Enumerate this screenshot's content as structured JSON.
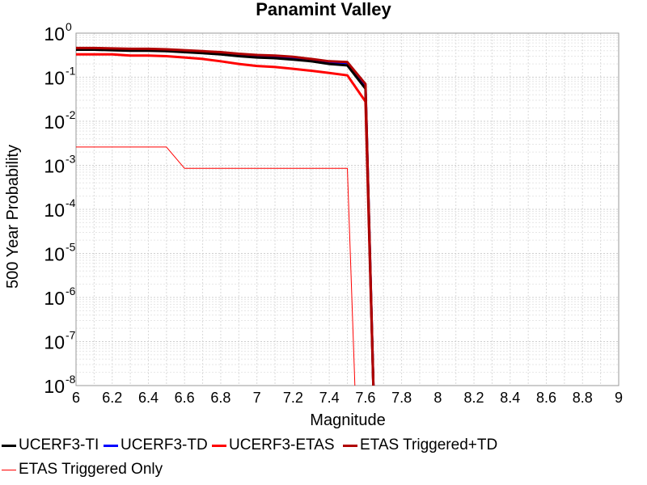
{
  "chart_data": {
    "type": "line",
    "title": "Panamint Valley",
    "xlabel": "Magnitude",
    "ylabel": "500 Year Probability",
    "xlim": [
      6,
      9
    ],
    "ylim": [
      1e-08,
      1
    ],
    "yscale": "log",
    "grid": true,
    "x_ticks": [
      "6",
      "6.2",
      "6.4",
      "6.6",
      "6.8",
      "7",
      "7.2",
      "7.4",
      "7.6",
      "7.8",
      "8",
      "8.2",
      "8.4",
      "8.6",
      "8.8",
      "9"
    ],
    "y_ticks": [
      {
        "base": "10",
        "exp": "0"
      },
      {
        "base": "10",
        "exp": "-1"
      },
      {
        "base": "10",
        "exp": "-2"
      },
      {
        "base": "10",
        "exp": "-3"
      },
      {
        "base": "10",
        "exp": "-4"
      },
      {
        "base": "10",
        "exp": "-5"
      },
      {
        "base": "10",
        "exp": "-6"
      },
      {
        "base": "10",
        "exp": "-7"
      },
      {
        "base": "10",
        "exp": "-8"
      }
    ],
    "legend_position": "bottom",
    "series": [
      {
        "name": "UCERF3-TI",
        "color": "#000000",
        "width": 3,
        "points": [
          [
            6.0,
            0.42
          ],
          [
            6.1,
            0.42
          ],
          [
            6.2,
            0.41
          ],
          [
            6.3,
            0.4
          ],
          [
            6.4,
            0.4
          ],
          [
            6.5,
            0.39
          ],
          [
            6.6,
            0.37
          ],
          [
            6.7,
            0.35
          ],
          [
            6.8,
            0.33
          ],
          [
            6.9,
            0.3
          ],
          [
            7.0,
            0.28
          ],
          [
            7.1,
            0.27
          ],
          [
            7.2,
            0.25
          ],
          [
            7.3,
            0.23
          ],
          [
            7.4,
            0.2
          ],
          [
            7.5,
            0.185
          ],
          [
            7.6,
            0.055
          ],
          [
            7.65,
            1e-09
          ]
        ]
      },
      {
        "name": "UCERF3-TD",
        "color": "#0000ff",
        "width": 3,
        "points": [
          [
            6.0,
            0.45
          ],
          [
            6.1,
            0.45
          ],
          [
            6.2,
            0.44
          ],
          [
            6.3,
            0.43
          ],
          [
            6.4,
            0.43
          ],
          [
            6.5,
            0.42
          ],
          [
            6.6,
            0.4
          ],
          [
            6.7,
            0.38
          ],
          [
            6.8,
            0.36
          ],
          [
            6.9,
            0.33
          ],
          [
            7.0,
            0.31
          ],
          [
            7.1,
            0.3
          ],
          [
            7.2,
            0.28
          ],
          [
            7.3,
            0.25
          ],
          [
            7.4,
            0.22
          ],
          [
            7.5,
            0.21
          ],
          [
            7.6,
            0.065
          ],
          [
            7.65,
            1e-09
          ]
        ]
      },
      {
        "name": "UCERF3-ETAS",
        "color": "#ff0000",
        "width": 3,
        "points": [
          [
            6.0,
            0.33
          ],
          [
            6.1,
            0.33
          ],
          [
            6.2,
            0.33
          ],
          [
            6.3,
            0.31
          ],
          [
            6.4,
            0.31
          ],
          [
            6.5,
            0.3
          ],
          [
            6.6,
            0.28
          ],
          [
            6.7,
            0.26
          ],
          [
            6.8,
            0.23
          ],
          [
            6.9,
            0.2
          ],
          [
            7.0,
            0.18
          ],
          [
            7.1,
            0.17
          ],
          [
            7.2,
            0.155
          ],
          [
            7.3,
            0.14
          ],
          [
            7.4,
            0.125
          ],
          [
            7.5,
            0.11
          ],
          [
            7.6,
            0.028
          ],
          [
            7.65,
            1e-09
          ]
        ]
      },
      {
        "name": "ETAS Triggered+TD",
        "color": "#b00000",
        "width": 3,
        "points": [
          [
            6.0,
            0.46
          ],
          [
            6.1,
            0.46
          ],
          [
            6.2,
            0.45
          ],
          [
            6.3,
            0.44
          ],
          [
            6.4,
            0.44
          ],
          [
            6.5,
            0.43
          ],
          [
            6.6,
            0.41
          ],
          [
            6.7,
            0.39
          ],
          [
            6.8,
            0.37
          ],
          [
            6.9,
            0.34
          ],
          [
            7.0,
            0.32
          ],
          [
            7.1,
            0.31
          ],
          [
            7.2,
            0.29
          ],
          [
            7.3,
            0.26
          ],
          [
            7.4,
            0.23
          ],
          [
            7.5,
            0.22
          ],
          [
            7.6,
            0.07
          ],
          [
            7.65,
            1e-09
          ]
        ]
      },
      {
        "name": "ETAS Triggered Only",
        "color": "#ff0000",
        "width": 1,
        "points": [
          [
            6.0,
            0.0026
          ],
          [
            6.5,
            0.0026
          ],
          [
            6.6,
            0.00085
          ],
          [
            7.5,
            0.00085
          ],
          [
            7.55,
            1e-09
          ]
        ]
      }
    ]
  }
}
